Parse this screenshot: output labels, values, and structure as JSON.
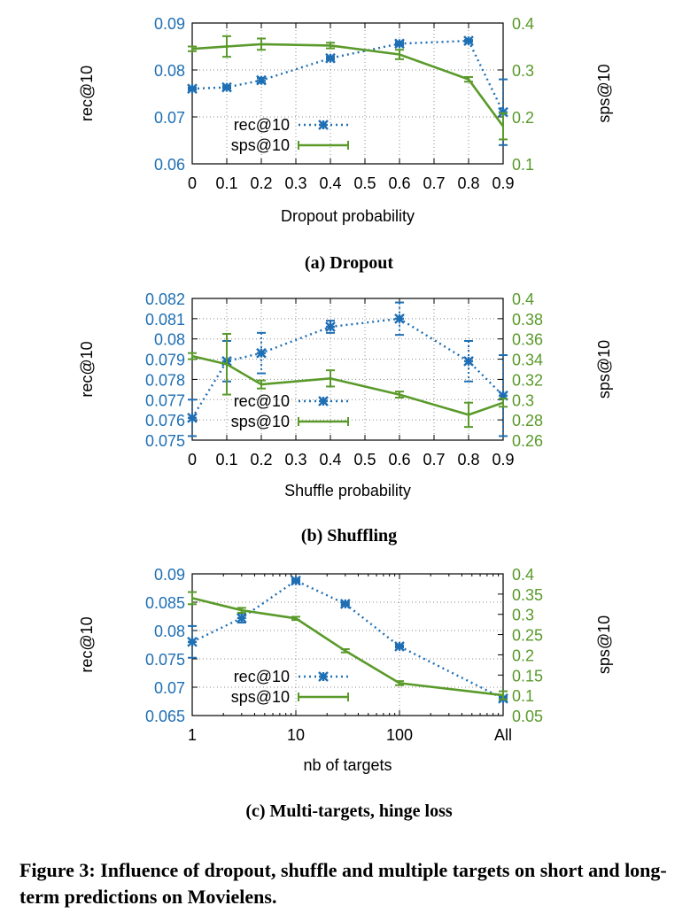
{
  "colors": {
    "rec": "#1f6fb4",
    "sps": "#5a9a2a",
    "grid": "#8a8a8a",
    "axis": "#000000"
  },
  "figure_caption": "Figure 3: Influence of dropout, shuffle and multiple targets on short and long-term predictions on Movielens.",
  "chart_data": [
    {
      "type": "line",
      "caption": "(a) Dropout",
      "xlabel": "Dropout probability",
      "ylabel_left": "rec@10",
      "ylabel_right": "sps@10",
      "x_scale": "linear",
      "xlim": [
        0,
        0.9
      ],
      "x_ticks": [
        0,
        0.1,
        0.2,
        0.3,
        0.4,
        0.5,
        0.6,
        0.7,
        0.8,
        0.9
      ],
      "x_tick_labels": [
        "0",
        "0.1",
        "0.2",
        "0.3",
        "0.4",
        "0.5",
        "0.6",
        "0.7",
        "0.8",
        "0.9"
      ],
      "ylim_left": [
        0.06,
        0.09
      ],
      "y_ticks_left": [
        0.06,
        0.07,
        0.08,
        0.09
      ],
      "y_tick_labels_left": [
        "0.06",
        "0.07",
        "0.08",
        "0.09"
      ],
      "ylim_right": [
        0.1,
        0.4
      ],
      "y_ticks_right": [
        0.1,
        0.2,
        0.3,
        0.4
      ],
      "y_tick_labels_right": [
        "0.1",
        "0.2",
        "0.3",
        "0.4"
      ],
      "grid": true,
      "legend_position": "bottom-left",
      "series": [
        {
          "name": "rec@10",
          "axis": "left",
          "style": "dotted-star",
          "x": [
            0,
            0.1,
            0.2,
            0.4,
            0.6,
            0.8,
            0.9
          ],
          "y": [
            0.076,
            0.0763,
            0.0778,
            0.0825,
            0.0856,
            0.0862,
            0.071
          ],
          "err": [
            0.0003,
            0.0003,
            0.0005,
            0.0003,
            0.0004,
            0.0002,
            0.007
          ]
        },
        {
          "name": "sps@10",
          "axis": "right",
          "style": "solid-bar",
          "x": [
            0,
            0.1,
            0.2,
            0.4,
            0.6,
            0.8,
            0.9
          ],
          "y": [
            0.345,
            0.35,
            0.355,
            0.352,
            0.333,
            0.28,
            0.18
          ],
          "err": [
            0.005,
            0.022,
            0.012,
            0.006,
            0.01,
            0.005,
            0.028
          ]
        }
      ]
    },
    {
      "type": "line",
      "caption": "(b) Shuffling",
      "xlabel": "Shuffle probability",
      "ylabel_left": "rec@10",
      "ylabel_right": "sps@10",
      "x_scale": "linear",
      "xlim": [
        0,
        0.9
      ],
      "x_ticks": [
        0,
        0.1,
        0.2,
        0.3,
        0.4,
        0.5,
        0.6,
        0.7,
        0.8,
        0.9
      ],
      "x_tick_labels": [
        "0",
        "0.1",
        "0.2",
        "0.3",
        "0.4",
        "0.5",
        "0.6",
        "0.7",
        "0.8",
        "0.9"
      ],
      "ylim_left": [
        0.075,
        0.082
      ],
      "y_ticks_left": [
        0.075,
        0.076,
        0.077,
        0.078,
        0.079,
        0.08,
        0.081,
        0.082
      ],
      "y_tick_labels_left": [
        "0.075",
        "0.076",
        "0.077",
        "0.078",
        "0.079",
        "0.08",
        "0.081",
        "0.082"
      ],
      "ylim_right": [
        0.26,
        0.4
      ],
      "y_ticks_right": [
        0.26,
        0.28,
        0.3,
        0.32,
        0.34,
        0.36,
        0.38,
        0.4
      ],
      "y_tick_labels_right": [
        "0.26",
        "0.28",
        "0.3",
        "0.32",
        "0.34",
        "0.36",
        "0.38",
        "0.4"
      ],
      "grid": true,
      "legend_position": "bottom-left",
      "series": [
        {
          "name": "rec@10",
          "axis": "left",
          "style": "dotted-star",
          "x": [
            0,
            0.1,
            0.2,
            0.4,
            0.6,
            0.8,
            0.9
          ],
          "y": [
            0.0761,
            0.0789,
            0.0793,
            0.0806,
            0.081,
            0.0789,
            0.0772
          ],
          "err": [
            0.0009,
            0.001,
            0.001,
            0.0003,
            0.0008,
            0.001,
            0.002
          ]
        },
        {
          "name": "sps@10",
          "axis": "right",
          "style": "solid-bar",
          "x": [
            0,
            0.1,
            0.2,
            0.4,
            0.6,
            0.8,
            0.9
          ],
          "y": [
            0.343,
            0.335,
            0.315,
            0.321,
            0.305,
            0.285,
            0.297
          ],
          "err": [
            0.003,
            0.03,
            0.004,
            0.008,
            0.003,
            0.012,
            0.004
          ]
        }
      ]
    },
    {
      "type": "line",
      "caption": "(c) Multi-targets, hinge loss",
      "xlabel": "nb of targets",
      "ylabel_left": "rec@10",
      "ylabel_right": "sps@10",
      "x_scale": "log",
      "xlim": [
        1,
        1000
      ],
      "x_ticks": [
        1,
        10,
        100,
        1000
      ],
      "x_tick_labels": [
        "1",
        "10",
        "100",
        "All"
      ],
      "ylim_left": [
        0.065,
        0.09
      ],
      "y_ticks_left": [
        0.065,
        0.07,
        0.075,
        0.08,
        0.085,
        0.09
      ],
      "y_tick_labels_left": [
        "0.065",
        "0.07",
        "0.075",
        "0.08",
        "0.085",
        "0.09"
      ],
      "ylim_right": [
        0.05,
        0.4
      ],
      "y_ticks_right": [
        0.05,
        0.1,
        0.15,
        0.2,
        0.25,
        0.3,
        0.35,
        0.4
      ],
      "y_tick_labels_right": [
        "0.05",
        "0.1",
        "0.15",
        "0.2",
        "0.25",
        "0.3",
        "0.35",
        "0.4"
      ],
      "grid": true,
      "legend_position": "bottom-left",
      "series": [
        {
          "name": "rec@10",
          "axis": "left",
          "style": "dotted-star",
          "x": [
            1,
            3,
            10,
            30,
            100,
            1000
          ],
          "y": [
            0.078,
            0.0822,
            0.0888,
            0.0847,
            0.0772,
            0.068
          ],
          "err": [
            0.0028,
            0.0008,
            0.0003,
            0.0003,
            0.0002,
            0.0003
          ]
        },
        {
          "name": "sps@10",
          "axis": "right",
          "style": "solid-bar",
          "x": [
            1,
            3,
            10,
            30,
            100,
            1000
          ],
          "y": [
            0.34,
            0.31,
            0.29,
            0.21,
            0.13,
            0.1
          ],
          "err": [
            0.015,
            0.006,
            0.004,
            0.004,
            0.005,
            0.01
          ]
        }
      ]
    }
  ]
}
